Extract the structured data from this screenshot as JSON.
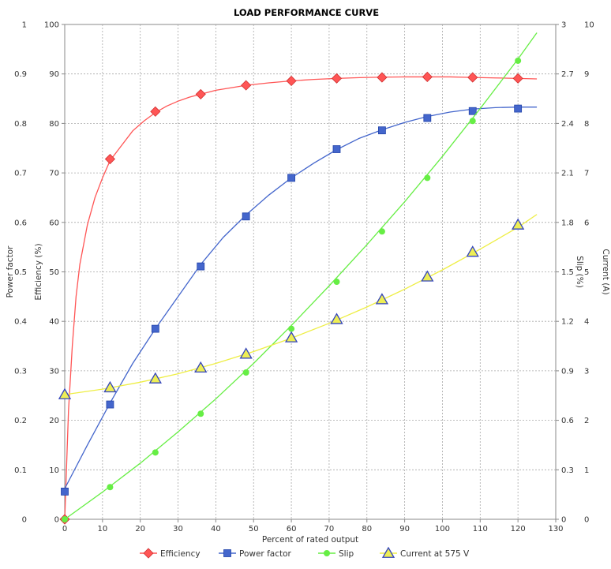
{
  "chart_data": {
    "type": "line",
    "title": "LOAD PERFORMANCE CURVE",
    "xlabel": "Percent of rated output",
    "xlim": [
      0,
      130
    ],
    "x_ticks": [
      0,
      10,
      20,
      30,
      40,
      50,
      60,
      70,
      80,
      90,
      100,
      110,
      120,
      130
    ],
    "grid": true,
    "legend_position": "bottom",
    "axes": [
      {
        "id": "pf",
        "side": "left-outer",
        "label": "Power factor",
        "range": [
          0,
          1
        ],
        "ticks": [
          "0",
          "0.1",
          "0.2",
          "0.3",
          "0.4",
          "0.5",
          "0.6",
          "0.7",
          "0.8",
          "0.9",
          "1"
        ]
      },
      {
        "id": "eff",
        "side": "left-inner",
        "label": "Efficiency (%)",
        "range": [
          0,
          100
        ],
        "ticks": [
          "0",
          "10",
          "20",
          "30",
          "40",
          "50",
          "60",
          "70",
          "80",
          "90",
          "100"
        ]
      },
      {
        "id": "slip",
        "side": "right-inner",
        "label": "Slip (%)",
        "range": [
          0,
          3
        ],
        "ticks": [
          "0",
          "0.3",
          "0.6",
          "0.9",
          "1.2",
          "1.5",
          "1.8",
          "2.1",
          "2.4",
          "2.7",
          "3"
        ]
      },
      {
        "id": "cur",
        "side": "right-outer",
        "label": "Current (A)",
        "range": [
          0,
          10
        ],
        "ticks": [
          "0",
          "1",
          "2",
          "3",
          "4",
          "5",
          "6",
          "7",
          "8",
          "9",
          "10"
        ]
      }
    ],
    "series": [
      {
        "name": "Efficiency",
        "axis": "eff",
        "color": "#ff5555",
        "marker": "diamond",
        "x": [
          0,
          12,
          24,
          36,
          48,
          60,
          72,
          84,
          96,
          108,
          120
        ],
        "y": [
          0,
          72.8,
          82.4,
          85.9,
          87.7,
          88.6,
          89.1,
          89.3,
          89.4,
          89.3,
          89.1
        ],
        "curve_x": [
          0,
          1,
          2,
          3,
          4,
          6,
          8,
          10,
          12,
          15,
          18,
          21,
          24,
          27,
          30,
          33,
          36,
          40,
          44,
          48,
          54,
          60,
          66,
          72,
          78,
          84,
          90,
          96,
          102,
          108,
          114,
          120,
          125
        ],
        "curve_y": [
          0,
          22,
          35,
          45,
          51.5,
          59.5,
          65,
          69,
          72.5,
          75.5,
          78.5,
          80.5,
          82.2,
          83.5,
          84.5,
          85.3,
          85.9,
          86.7,
          87.2,
          87.7,
          88.2,
          88.6,
          88.9,
          89.1,
          89.25,
          89.35,
          89.4,
          89.4,
          89.4,
          89.3,
          89.2,
          89.1,
          89.0
        ]
      },
      {
        "name": "Power factor",
        "axis": "pf",
        "color": "#4466cc",
        "marker": "square",
        "x": [
          0,
          12,
          24,
          36,
          48,
          60,
          72,
          84,
          96,
          108,
          120
        ],
        "y": [
          0.056,
          0.232,
          0.385,
          0.511,
          0.612,
          0.69,
          0.748,
          0.786,
          0.811,
          0.825,
          0.83
        ],
        "curve_x": [
          0,
          6,
          12,
          18,
          24,
          30,
          36,
          42,
          48,
          54,
          60,
          66,
          72,
          78,
          84,
          90,
          96,
          102,
          108,
          114,
          120,
          125
        ],
        "curve_y": [
          0.062,
          0.15,
          0.235,
          0.315,
          0.385,
          0.45,
          0.515,
          0.57,
          0.615,
          0.655,
          0.69,
          0.72,
          0.747,
          0.77,
          0.787,
          0.802,
          0.814,
          0.823,
          0.829,
          0.832,
          0.833,
          0.833
        ]
      },
      {
        "name": "Slip",
        "axis": "slip",
        "color": "#66ee44",
        "marker": "circle",
        "x": [
          0,
          12,
          24,
          36,
          48,
          60,
          72,
          84,
          96,
          108,
          120
        ],
        "y": [
          0,
          0.195,
          0.405,
          0.64,
          0.89,
          1.155,
          1.44,
          1.745,
          2.07,
          2.415,
          2.78
        ],
        "curve_x": [
          0,
          10,
          20,
          30,
          40,
          50,
          60,
          70,
          80,
          90,
          100,
          110,
          120,
          125
        ],
        "curve_y": [
          0,
          0.165,
          0.34,
          0.53,
          0.73,
          0.945,
          1.175,
          1.415,
          1.665,
          1.925,
          2.2,
          2.49,
          2.79,
          2.95
        ]
      },
      {
        "name": "Current at 575 V",
        "axis": "cur",
        "color": "#eeee44",
        "marker": "triangle",
        "marker_fill": "#eeee55",
        "marker_stroke": "#3344bb",
        "x": [
          0,
          12,
          24,
          36,
          48,
          60,
          72,
          84,
          96,
          108,
          120
        ],
        "y": [
          2.52,
          2.66,
          2.84,
          3.06,
          3.34,
          3.67,
          4.04,
          4.44,
          4.9,
          5.4,
          5.95
        ],
        "curve_x": [
          0,
          10,
          20,
          30,
          40,
          50,
          60,
          70,
          80,
          90,
          100,
          110,
          120,
          125
        ],
        "curve_y": [
          2.52,
          2.63,
          2.77,
          2.94,
          3.15,
          3.39,
          3.66,
          3.96,
          4.29,
          4.65,
          5.04,
          5.46,
          5.9,
          6.16
        ]
      }
    ]
  }
}
